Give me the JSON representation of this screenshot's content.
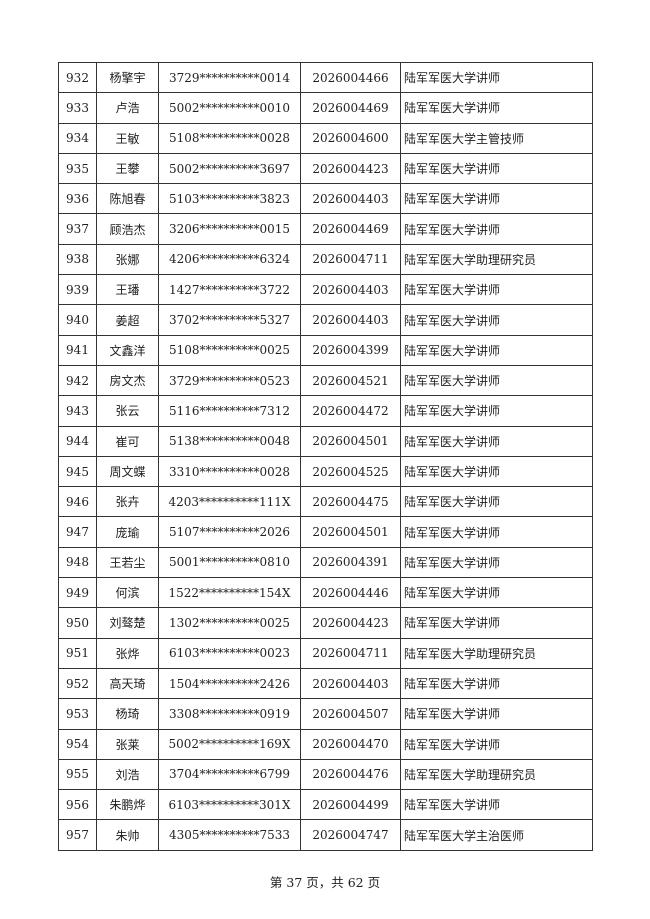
{
  "rows": [
    [
      "932",
      "杨擎宇",
      "3729**********0014",
      "2026004466",
      "陆军军医大学讲师"
    ],
    [
      "933",
      "卢浩",
      "5002**********0010",
      "2026004469",
      "陆军军医大学讲师"
    ],
    [
      "934",
      "王敏",
      "5108**********0028",
      "2026004600",
      "陆军军医大学主管技师"
    ],
    [
      "935",
      "王攀",
      "5002**********3697",
      "2026004423",
      "陆军军医大学讲师"
    ],
    [
      "936",
      "陈旭春",
      "5103**********3823",
      "2026004403",
      "陆军军医大学讲师"
    ],
    [
      "937",
      "顾浩杰",
      "3206**********0015",
      "2026004469",
      "陆军军医大学讲师"
    ],
    [
      "938",
      "张娜",
      "4206**********6324",
      "2026004711",
      "陆军军医大学助理研究员"
    ],
    [
      "939",
      "王璠",
      "1427**********3722",
      "2026004403",
      "陆军军医大学讲师"
    ],
    [
      "940",
      "姜超",
      "3702**********5327",
      "2026004403",
      "陆军军医大学讲师"
    ],
    [
      "941",
      "文鑫洋",
      "5108**********0025",
      "2026004399",
      "陆军军医大学讲师"
    ],
    [
      "942",
      "房文杰",
      "3729**********0523",
      "2026004521",
      "陆军军医大学讲师"
    ],
    [
      "943",
      "张云",
      "5116**********7312",
      "2026004472",
      "陆军军医大学讲师"
    ],
    [
      "944",
      "崔可",
      "5138**********0048",
      "2026004501",
      "陆军军医大学讲师"
    ],
    [
      "945",
      "周文蝶",
      "3310**********0028",
      "2026004525",
      "陆军军医大学讲师"
    ],
    [
      "946",
      "张卉",
      "4203**********111X",
      "2026004475",
      "陆军军医大学讲师"
    ],
    [
      "947",
      "庞瑜",
      "5107**********2026",
      "2026004501",
      "陆军军医大学讲师"
    ],
    [
      "948",
      "王若尘",
      "5001**********0810",
      "2026004391",
      "陆军军医大学讲师"
    ],
    [
      "949",
      "何滨",
      "1522**********154X",
      "2026004446",
      "陆军军医大学讲师"
    ],
    [
      "950",
      "刘骜楚",
      "1302**********0025",
      "2026004423",
      "陆军军医大学讲师"
    ],
    [
      "951",
      "张烨",
      "6103**********0023",
      "2026004711",
      "陆军军医大学助理研究员"
    ],
    [
      "952",
      "高天琦",
      "1504**********2426",
      "2026004403",
      "陆军军医大学讲师"
    ],
    [
      "953",
      "杨琦",
      "3308**********0919",
      "2026004507",
      "陆军军医大学讲师"
    ],
    [
      "954",
      "张莱",
      "5002**********169X",
      "2026004470",
      "陆军军医大学讲师"
    ],
    [
      "955",
      "刘浩",
      "3704**********6799",
      "2026004476",
      "陆军军医大学助理研究员"
    ],
    [
      "956",
      "朱鹏烨",
      "6103**********301X",
      "2026004499",
      "陆军军医大学讲师"
    ],
    [
      "957",
      "朱帅",
      "4305**********7533",
      "2026004747",
      "陆军军医大学主治医师"
    ]
  ],
  "footer": "第 37 页，共 62 页"
}
